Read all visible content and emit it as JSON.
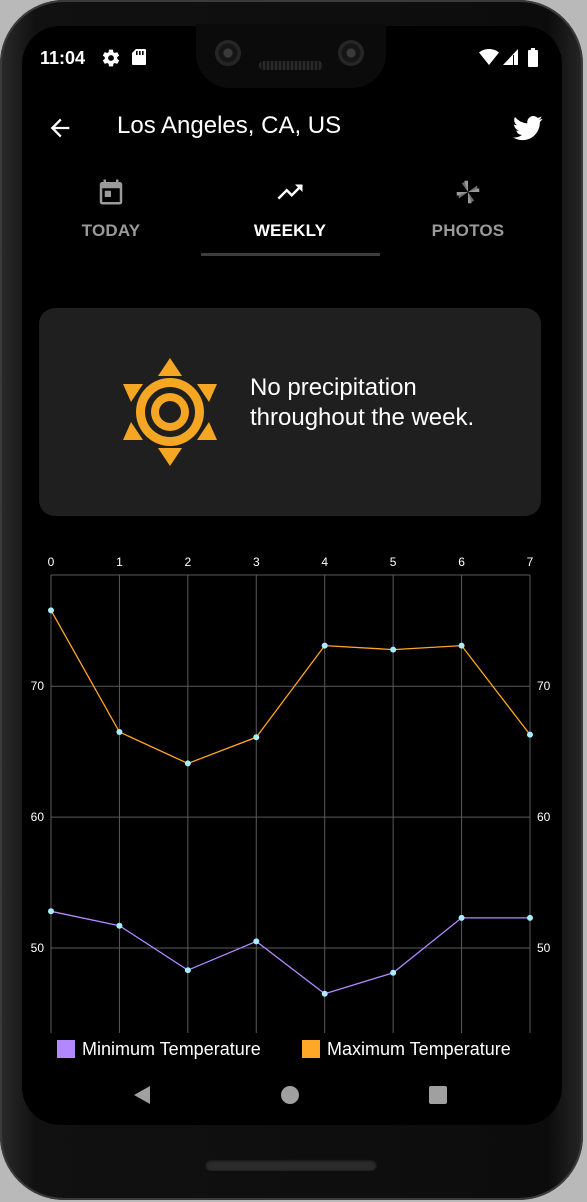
{
  "status_bar": {
    "time": "11:04",
    "icons": [
      "settings-icon",
      "sd-card-icon",
      "wifi-icon",
      "cell-signal-icon",
      "battery-icon"
    ]
  },
  "header": {
    "title": "Los Angeles, CA, US",
    "back_icon": "arrow-back-icon",
    "share_icon": "twitter-icon"
  },
  "tabs": [
    {
      "label": "TODAY",
      "icon": "calendar-icon",
      "active": false
    },
    {
      "label": "WEEKLY",
      "icon": "trending-up-icon",
      "active": true
    },
    {
      "label": "PHOTOS",
      "icon": "pinwheel-icon",
      "active": false
    }
  ],
  "summary_card": {
    "icon": "sun-icon",
    "text": "No precipitation throughout the week."
  },
  "chart_data": {
    "type": "line",
    "x": [
      0,
      1,
      2,
      3,
      4,
      5,
      6,
      7
    ],
    "x_tick_labels": [
      "0",
      "1",
      "2",
      "3",
      "4",
      "5",
      "6",
      "7"
    ],
    "y_tick_values": [
      50,
      60,
      70
    ],
    "y_tick_labels": [
      "50",
      "60",
      "70"
    ],
    "ylim": [
      43.5,
      78.5
    ],
    "xlim": [
      0,
      7
    ],
    "grid": true,
    "legend_position": "bottom",
    "series": [
      {
        "name": "Minimum Temperature",
        "color": "#b388ff",
        "values": [
          52.8,
          51.7,
          48.3,
          50.5,
          46.5,
          48.1,
          52.3,
          52.3
        ]
      },
      {
        "name": "Maximum Temperature",
        "color": "#ffa726",
        "values": [
          75.8,
          66.5,
          64.1,
          66.1,
          73.1,
          72.8,
          73.1,
          66.3
        ]
      }
    ],
    "point_color": "#a8ecff"
  },
  "nav_bar": {
    "icons": [
      "back-triangle-icon",
      "home-circle-icon",
      "recents-square-icon"
    ]
  },
  "colors": {
    "accent": "#f5a623",
    "card_bg": "#1f1f1f",
    "screen_bg": "#000000",
    "tab_inactive": "#9a9a9a"
  }
}
